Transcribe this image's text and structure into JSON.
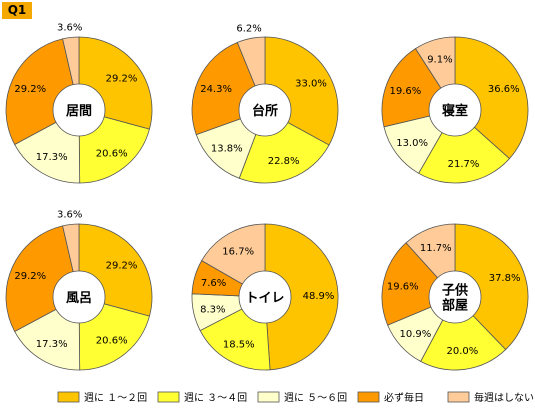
{
  "question_label": "Q1",
  "colors": {
    "週に１～２回": "#ffc400",
    "週に３～４回": "#ffff33",
    "週に５～６回": "#ffffcc",
    "必ず毎日": "#ff9900",
    "毎週はしない": "#ffcc99"
  },
  "chart_data": {
    "type": "pie",
    "legend_position": "bottom",
    "legend": [
      "週に １～２回",
      "週に ３～４回",
      "週に ５～６回",
      "必ず毎日",
      "毎週はしない"
    ],
    "categories": [
      "週に１～２回",
      "週に３～４回",
      "週に５～６回",
      "必ず毎日",
      "毎週はしない"
    ],
    "charts": [
      {
        "title": [
          "居間"
        ],
        "values": [
          29.2,
          20.6,
          17.3,
          29.2,
          3.6
        ]
      },
      {
        "title": [
          "台所"
        ],
        "values": [
          33.0,
          22.8,
          13.8,
          24.3,
          6.2
        ]
      },
      {
        "title": [
          "寝室"
        ],
        "values": [
          36.6,
          21.7,
          13.0,
          19.6,
          9.1
        ]
      },
      {
        "title": [
          "風呂"
        ],
        "values": [
          29.2,
          20.6,
          17.3,
          29.2,
          3.6
        ]
      },
      {
        "title": [
          "トイレ"
        ],
        "values": [
          48.9,
          18.5,
          8.3,
          7.6,
          16.7
        ]
      },
      {
        "title": [
          "子供",
          "部屋"
        ],
        "values": [
          37.8,
          20.0,
          10.9,
          19.6,
          11.7
        ]
      }
    ]
  }
}
